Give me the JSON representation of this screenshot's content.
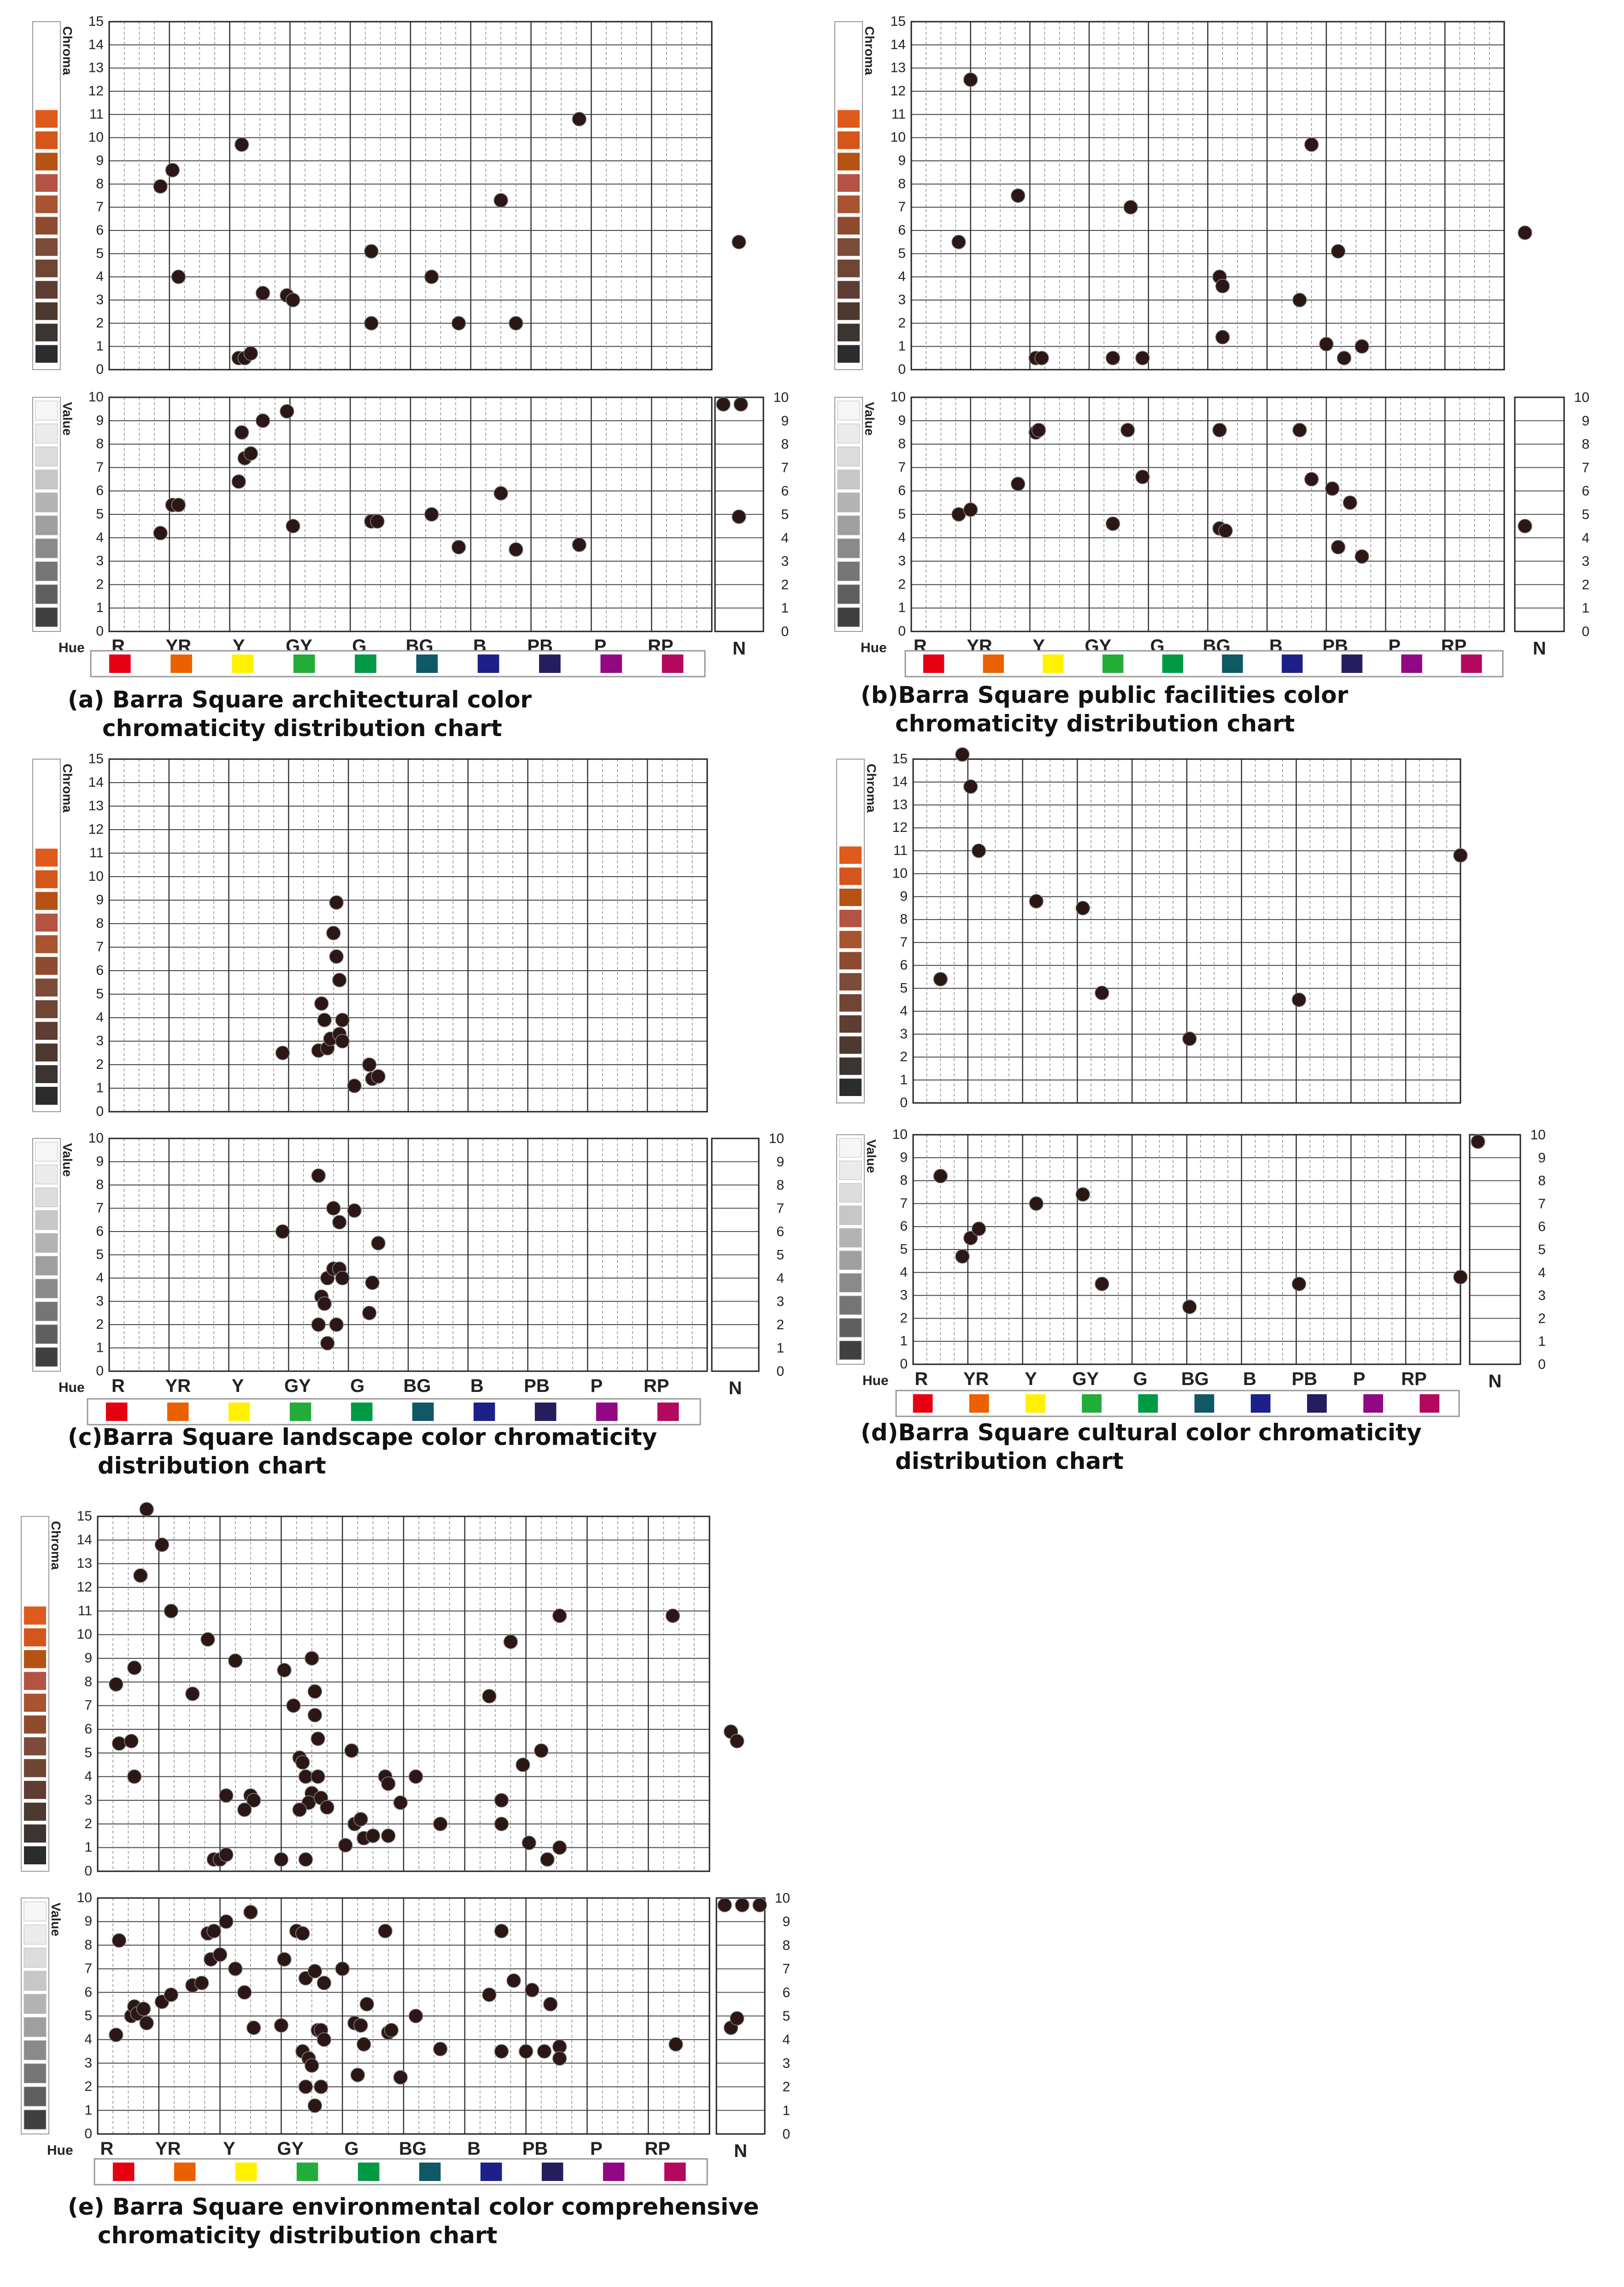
{
  "hue_labels": [
    "R",
    "YR",
    "Y",
    "GY",
    "G",
    "BG",
    "B",
    "PB",
    "P",
    "RP"
  ],
  "neutral_label": "N",
  "hue_axis_label": "Hue",
  "chroma_axis_label": "Chroma",
  "value_axis_label": "Value",
  "chroma_ticks": [
    "0",
    "1",
    "2",
    "3",
    "4",
    "5",
    "6",
    "7",
    "8",
    "9",
    "10",
    "11",
    "12",
    "13",
    "14",
    "15"
  ],
  "value_ticks": [
    "0",
    "1",
    "2",
    "3",
    "4",
    "5",
    "6",
    "7",
    "8",
    "9",
    "10"
  ],
  "colors": {
    "hue_swatches": [
      "#e60012",
      "#eb6100",
      "#fff100",
      "#22ac38",
      "#009944",
      "#0f5866",
      "#1d2088",
      "#251e5e",
      "#920783",
      "#b4085f"
    ],
    "chroma_swatches": [
      "#e05a1c",
      "#d4561a",
      "#b55214",
      "#b45343",
      "#a95431",
      "#8f4b30",
      "#7c4b3a",
      "#6f4534",
      "#5f3d33",
      "#4d3930",
      "#3c3431",
      "#2c2c2c"
    ],
    "value_swatches": [
      "#f6f6f6",
      "#ebebeb",
      "#dcdcdc",
      "#c7c7c7",
      "#b3b3b3",
      "#9f9f9f",
      "#8a8a8a",
      "#757575",
      "#5f5f5f",
      "#404040"
    ],
    "dot": "#2a1716",
    "grid": "#444444"
  },
  "charts": [
    {
      "caption_lines": [
        "(a) Barra Square architectural color",
        "chromaticity distribution chart"
      ],
      "chart_data": {
        "type": "scatter",
        "x_categories": [
          "R",
          "YR",
          "Y",
          "GY",
          "G",
          "BG",
          "B",
          "PB",
          "P",
          "RP"
        ],
        "chroma_points": [
          [
            0.35,
            7.9
          ],
          [
            0.55,
            8.6
          ],
          [
            0.65,
            4.0
          ],
          [
            1.7,
            9.7
          ],
          [
            1.65,
            0.5
          ],
          [
            1.75,
            0.5
          ],
          [
            1.85,
            0.7
          ],
          [
            2.05,
            3.3
          ],
          [
            2.45,
            3.2
          ],
          [
            2.55,
            3.0
          ],
          [
            3.85,
            5.1
          ],
          [
            3.85,
            2.0
          ],
          [
            4.85,
            4.0
          ],
          [
            5.3,
            2.0
          ],
          [
            6.0,
            7.3
          ],
          [
            6.25,
            2.0
          ],
          [
            7.3,
            10.8
          ],
          [
            9.95,
            5.5
          ]
        ],
        "value_points": [
          [
            0.35,
            4.2
          ],
          [
            0.55,
            5.4
          ],
          [
            0.65,
            5.4
          ],
          [
            1.65,
            6.4
          ],
          [
            1.7,
            8.5
          ],
          [
            1.75,
            7.4
          ],
          [
            1.85,
            7.6
          ],
          [
            2.05,
            9.0
          ],
          [
            2.45,
            9.4
          ],
          [
            2.55,
            4.5
          ],
          [
            3.85,
            4.7
          ],
          [
            3.95,
            4.7
          ],
          [
            4.85,
            5.0
          ],
          [
            5.3,
            3.6
          ],
          [
            6.0,
            5.9
          ],
          [
            6.25,
            3.5
          ],
          [
            7.3,
            3.7
          ],
          [
            9.95,
            4.9
          ]
        ],
        "neutral_values": [
          9.7,
          9.7
        ]
      }
    },
    {
      "caption_lines": [
        "(b)Barra Square public facilities  color",
        "chromaticity distribution chart"
      ],
      "chart_data": {
        "type": "scatter",
        "x_categories": [
          "R",
          "YR",
          "Y",
          "GY",
          "G",
          "BG",
          "B",
          "PB",
          "P",
          "RP"
        ],
        "chroma_points": [
          [
            0.3,
            5.5
          ],
          [
            0.5,
            12.5
          ],
          [
            1.3,
            7.5
          ],
          [
            1.6,
            0.5
          ],
          [
            1.7,
            0.5
          ],
          [
            2.9,
            0.5
          ],
          [
            3.2,
            7.0
          ],
          [
            3.4,
            0.5
          ],
          [
            4.7,
            4.0
          ],
          [
            4.75,
            3.6
          ],
          [
            4.75,
            1.4
          ],
          [
            6.05,
            3.0
          ],
          [
            6.25,
            9.7
          ],
          [
            6.5,
            1.1
          ],
          [
            6.7,
            5.1
          ],
          [
            6.8,
            0.5
          ],
          [
            7.1,
            1.0
          ],
          [
            9.85,
            5.9
          ]
        ],
        "value_points": [
          [
            0.3,
            5.0
          ],
          [
            0.5,
            5.2
          ],
          [
            1.3,
            6.3
          ],
          [
            1.6,
            8.5
          ],
          [
            1.65,
            8.6
          ],
          [
            2.9,
            4.6
          ],
          [
            3.15,
            8.6
          ],
          [
            3.4,
            6.6
          ],
          [
            4.7,
            8.6
          ],
          [
            4.7,
            4.4
          ],
          [
            4.8,
            4.3
          ],
          [
            6.05,
            8.6
          ],
          [
            6.25,
            6.5
          ],
          [
            6.6,
            6.1
          ],
          [
            6.7,
            3.6
          ],
          [
            6.9,
            5.5
          ],
          [
            7.1,
            3.2
          ],
          [
            9.85,
            4.5
          ]
        ],
        "neutral_values": []
      }
    },
    {
      "caption_lines": [
        "(c)Barra Square landscape color chromaticity",
        "distribution chart"
      ],
      "chart_data": {
        "type": "scatter",
        "x_categories": [
          "R",
          "YR",
          "Y",
          "GY",
          "G",
          "BG",
          "B",
          "PB",
          "P",
          "RP"
        ],
        "chroma_points": [
          [
            2.4,
            2.5
          ],
          [
            3.0,
            2.6
          ],
          [
            3.05,
            4.6
          ],
          [
            3.1,
            3.9
          ],
          [
            3.15,
            2.7
          ],
          [
            3.2,
            3.1
          ],
          [
            3.25,
            7.6
          ],
          [
            3.3,
            8.9
          ],
          [
            3.3,
            6.6
          ],
          [
            3.35,
            5.6
          ],
          [
            3.35,
            3.3
          ],
          [
            3.4,
            3.9
          ],
          [
            3.4,
            3.0
          ],
          [
            3.6,
            1.1
          ],
          [
            3.85,
            2.0
          ],
          [
            3.9,
            1.4
          ],
          [
            4.0,
            1.5
          ]
        ],
        "value_points": [
          [
            2.4,
            6.0
          ],
          [
            3.0,
            8.4
          ],
          [
            3.0,
            2.0
          ],
          [
            3.05,
            3.2
          ],
          [
            3.1,
            2.9
          ],
          [
            3.15,
            4.0
          ],
          [
            3.15,
            1.2
          ],
          [
            3.25,
            7.0
          ],
          [
            3.25,
            4.4
          ],
          [
            3.3,
            2.0
          ],
          [
            3.35,
            6.4
          ],
          [
            3.35,
            4.4
          ],
          [
            3.4,
            4.0
          ],
          [
            3.6,
            6.9
          ],
          [
            3.85,
            2.5
          ],
          [
            3.9,
            3.8
          ],
          [
            4.0,
            5.5
          ]
        ],
        "neutral_values": []
      }
    },
    {
      "caption_lines": [
        "(d)Barra Square cultural color chromaticity",
        "distribution chart"
      ],
      "chart_data": {
        "type": "scatter",
        "x_categories": [
          "R",
          "YR",
          "Y",
          "GY",
          "G",
          "BG",
          "B",
          "PB",
          "P",
          "RP"
        ],
        "chroma_points": [
          [
            0.0,
            5.4
          ],
          [
            0.4,
            15.2
          ],
          [
            0.55,
            13.8
          ],
          [
            0.7,
            11.0
          ],
          [
            1.75,
            8.8
          ],
          [
            2.6,
            8.5
          ],
          [
            2.95,
            4.8
          ],
          [
            4.55,
            2.8
          ],
          [
            6.55,
            4.5
          ],
          [
            9.5,
            10.8
          ]
        ],
        "value_points": [
          [
            0.0,
            8.2
          ],
          [
            0.4,
            4.7
          ],
          [
            0.55,
            5.5
          ],
          [
            0.7,
            5.9
          ],
          [
            1.75,
            7.0
          ],
          [
            2.6,
            7.4
          ],
          [
            2.95,
            3.5
          ],
          [
            4.55,
            2.5
          ],
          [
            6.55,
            3.5
          ],
          [
            9.5,
            3.8
          ]
        ],
        "neutral_values": [
          9.7
        ]
      }
    },
    {
      "caption_lines": [
        "(e) Barra Square environmental color comprehensive",
        "chromaticity distribution chart"
      ],
      "chart_data": {
        "type": "scatter",
        "x_categories": [
          "R",
          "YR",
          "Y",
          "GY",
          "G",
          "BG",
          "B",
          "PB",
          "P",
          "RP"
        ],
        "chroma_points": [
          [
            0.3,
            15.3
          ],
          [
            0.55,
            13.8
          ],
          [
            0.2,
            12.5
          ],
          [
            0.7,
            11.0
          ],
          [
            1.3,
            9.8
          ],
          [
            1.75,
            8.9
          ],
          [
            2.55,
            8.5
          ],
          [
            0.1,
            8.6
          ],
          [
            -0.2,
            7.9
          ],
          [
            1.05,
            7.5
          ],
          [
            -0.15,
            5.4
          ],
          [
            0.05,
            5.5
          ],
          [
            0.1,
            4.0
          ],
          [
            2.7,
            7.0
          ],
          [
            3.0,
            9.0
          ],
          [
            3.05,
            7.6
          ],
          [
            3.05,
            6.6
          ],
          [
            3.1,
            5.6
          ],
          [
            2.8,
            4.8
          ],
          [
            2.85,
            4.6
          ],
          [
            2.9,
            4.0
          ],
          [
            3.1,
            4.0
          ],
          [
            3.0,
            3.3
          ],
          [
            2.95,
            2.9
          ],
          [
            3.15,
            3.1
          ],
          [
            3.25,
            2.7
          ],
          [
            2.8,
            2.6
          ],
          [
            1.6,
            3.2
          ],
          [
            2.0,
            3.2
          ],
          [
            2.05,
            3.0
          ],
          [
            1.9,
            2.6
          ],
          [
            1.4,
            0.5
          ],
          [
            1.5,
            0.5
          ],
          [
            1.6,
            0.7
          ],
          [
            2.5,
            0.5
          ],
          [
            2.9,
            0.5
          ],
          [
            3.55,
            1.1
          ],
          [
            3.65,
            5.1
          ],
          [
            3.7,
            2.0
          ],
          [
            3.8,
            2.2
          ],
          [
            3.85,
            1.4
          ],
          [
            4.0,
            1.5
          ],
          [
            4.25,
            1.5
          ],
          [
            4.2,
            4.0
          ],
          [
            4.25,
            3.7
          ],
          [
            4.45,
            2.9
          ],
          [
            4.7,
            4.0
          ],
          [
            5.1,
            2.0
          ],
          [
            5.9,
            7.4
          ],
          [
            6.1,
            3.0
          ],
          [
            6.1,
            2.0
          ],
          [
            6.25,
            9.7
          ],
          [
            6.45,
            4.5
          ],
          [
            6.55,
            1.2
          ],
          [
            6.75,
            5.1
          ],
          [
            6.85,
            0.5
          ],
          [
            7.05,
            1.0
          ],
          [
            7.05,
            10.8
          ],
          [
            8.9,
            10.8
          ],
          [
            9.85,
            5.9
          ],
          [
            9.95,
            5.5
          ]
        ],
        "value_points": [
          [
            -0.2,
            4.2
          ],
          [
            -0.15,
            8.2
          ],
          [
            0.05,
            5.0
          ],
          [
            0.1,
            5.4
          ],
          [
            0.15,
            5.1
          ],
          [
            0.25,
            5.3
          ],
          [
            0.3,
            4.7
          ],
          [
            0.55,
            5.6
          ],
          [
            0.7,
            5.9
          ],
          [
            1.05,
            6.3
          ],
          [
            1.2,
            6.4
          ],
          [
            1.3,
            8.5
          ],
          [
            1.35,
            7.4
          ],
          [
            1.4,
            8.6
          ],
          [
            1.5,
            7.6
          ],
          [
            1.6,
            9.0
          ],
          [
            1.75,
            7.0
          ],
          [
            1.9,
            6.0
          ],
          [
            2.0,
            9.4
          ],
          [
            2.05,
            4.5
          ],
          [
            2.5,
            4.6
          ],
          [
            2.55,
            7.4
          ],
          [
            2.75,
            8.6
          ],
          [
            2.85,
            8.5
          ],
          [
            2.9,
            6.6
          ],
          [
            2.85,
            3.5
          ],
          [
            2.9,
            2.0
          ],
          [
            2.95,
            3.2
          ],
          [
            3.0,
            2.9
          ],
          [
            3.05,
            1.2
          ],
          [
            3.05,
            6.9
          ],
          [
            3.1,
            4.4
          ],
          [
            3.15,
            4.4
          ],
          [
            3.15,
            2.0
          ],
          [
            3.2,
            4.0
          ],
          [
            3.2,
            6.4
          ],
          [
            3.5,
            7.0
          ],
          [
            3.7,
            4.7
          ],
          [
            3.75,
            2.5
          ],
          [
            3.8,
            4.6
          ],
          [
            3.85,
            3.8
          ],
          [
            3.9,
            5.5
          ],
          [
            4.2,
            8.6
          ],
          [
            4.25,
            4.3
          ],
          [
            4.3,
            4.4
          ],
          [
            4.45,
            2.4
          ],
          [
            4.7,
            5.0
          ],
          [
            5.1,
            3.6
          ],
          [
            5.9,
            5.9
          ],
          [
            6.1,
            8.6
          ],
          [
            6.1,
            3.5
          ],
          [
            6.3,
            6.5
          ],
          [
            6.5,
            3.5
          ],
          [
            6.6,
            6.1
          ],
          [
            6.8,
            3.5
          ],
          [
            6.9,
            5.5
          ],
          [
            7.05,
            3.7
          ],
          [
            7.05,
            3.2
          ],
          [
            8.95,
            3.8
          ],
          [
            9.85,
            4.5
          ],
          [
            9.95,
            4.9
          ]
        ],
        "neutral_values": [
          9.7,
          9.7,
          9.7
        ]
      }
    }
  ]
}
